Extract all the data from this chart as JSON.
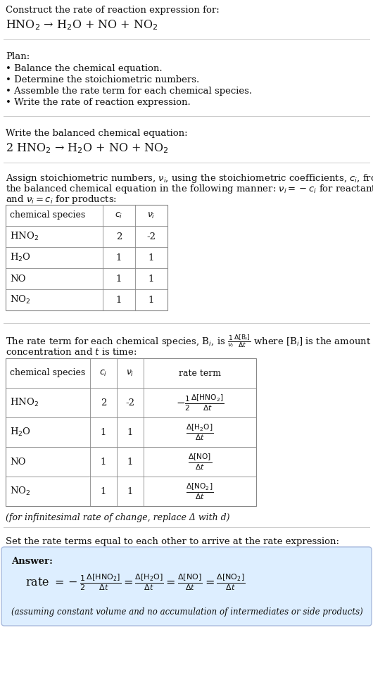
{
  "title_line1": "Construct the rate of reaction expression for:",
  "title_eq": "HNO$_2$ → H$_2$O + NO + NO$_2$",
  "plan_header": "Plan:",
  "plan_items": [
    "• Balance the chemical equation.",
    "• Determine the stoichiometric numbers.",
    "• Assemble the rate term for each chemical species.",
    "• Write the rate of reaction expression."
  ],
  "balanced_header": "Write the balanced chemical equation:",
  "balanced_eq": "2 HNO$_2$ → H$_2$O + NO + NO$_2$",
  "assign_text1": "Assign stoichiometric numbers, $\\nu_i$, using the stoichiometric coefficients, $c_i$, from",
  "assign_text2": "the balanced chemical equation in the following manner: $\\nu_i = -c_i$ for reactants",
  "assign_text3": "and $\\nu_i = c_i$ for products:",
  "table1_headers": [
    "chemical species",
    "$c_i$",
    "$\\nu_i$"
  ],
  "table1_rows": [
    [
      "HNO$_2$",
      "2",
      "-2"
    ],
    [
      "H$_2$O",
      "1",
      "1"
    ],
    [
      "NO",
      "1",
      "1"
    ],
    [
      "NO$_2$",
      "1",
      "1"
    ]
  ],
  "rate_text_a": "The rate term for each chemical species, B",
  "rate_text_b": ", is",
  "rate_text_c": "where [B",
  "rate_text_d": "] is the amount",
  "rate_text2": "concentration and $t$ is time:",
  "table2_headers": [
    "chemical species",
    "$c_i$",
    "$\\nu_i$",
    "rate term"
  ],
  "table2_rows_species": [
    "HNO$_2$",
    "H$_2$O",
    "NO",
    "NO$_2$"
  ],
  "table2_rows_ci": [
    "2",
    "1",
    "1",
    "1"
  ],
  "table2_rows_vi": [
    "-2",
    "1",
    "1",
    "1"
  ],
  "infinitesimal_note": "(for infinitesimal rate of change, replace Δ with d)",
  "set_equal_text": "Set the rate terms equal to each other to arrive at the rate expression:",
  "answer_label": "Answer:",
  "answer_note": "(assuming constant volume and no accumulation of intermediates or side products)",
  "bg_color": "#ffffff",
  "answer_bg": "#ddeeff",
  "answer_border": "#aabbdd",
  "separator_color": "#cccccc",
  "table_line_color": "#888888",
  "text_color": "#111111",
  "font_size": 9.5
}
